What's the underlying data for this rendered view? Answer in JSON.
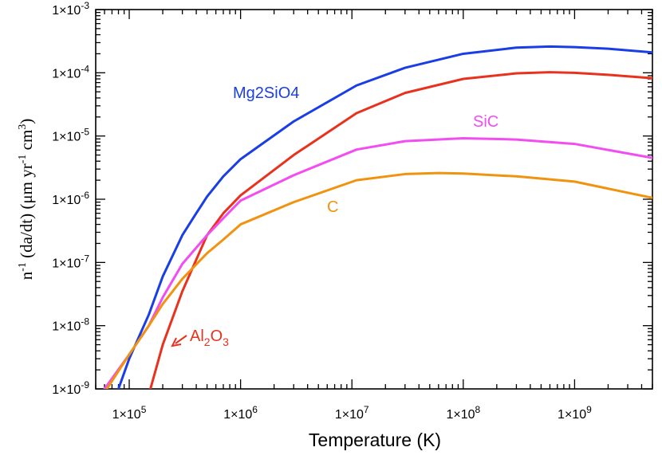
{
  "chart_data": {
    "type": "line",
    "xlabel": "Temperature (K)",
    "ylabel": {
      "prefix": "n",
      "prefix_sup": "-1",
      "part1": " (da/dt) (μm yr",
      "sup1": "-1",
      "part2": " cm",
      "sup2": "3",
      "part3": ")"
    },
    "xscale": "log",
    "yscale": "log",
    "xlim": [
      50000,
      5000000000
    ],
    "ylim": [
      1e-09,
      0.001
    ],
    "grid": false,
    "x_ticks": [
      {
        "base": "1×10",
        "exp": "5"
      },
      {
        "base": "1×10",
        "exp": "6"
      },
      {
        "base": "1×10",
        "exp": "7"
      },
      {
        "base": "1×10",
        "exp": "8"
      },
      {
        "base": "1×10",
        "exp": "9"
      }
    ],
    "y_ticks": [
      {
        "base": "1×10",
        "exp": "-9"
      },
      {
        "base": "1×10",
        "exp": "-8"
      },
      {
        "base": "1×10",
        "exp": "-7"
      },
      {
        "base": "1×10",
        "exp": "-6"
      },
      {
        "base": "1×10",
        "exp": "-5"
      },
      {
        "base": "1×10",
        "exp": "-4"
      },
      {
        "base": "1×10",
        "exp": "-3"
      }
    ],
    "series": [
      {
        "name": "Mg2SiO4",
        "color": "#1a3ee6",
        "label": {
          "text": "Mg2SiO4"
        },
        "points": [
          [
            80000,
            1e-09
          ],
          [
            100000,
            3e-09
          ],
          [
            150000,
            1.5e-08
          ],
          [
            200000,
            6e-08
          ],
          [
            300000,
            2.7e-07
          ],
          [
            400000,
            6e-07
          ],
          [
            500000,
            1.1e-06
          ],
          [
            700000,
            2.3e-06
          ],
          [
            1000000,
            4.3e-06
          ],
          [
            3000000,
            1.7e-05
          ],
          [
            11000000,
            6.3e-05
          ],
          [
            30000000,
            0.00012
          ],
          [
            100000000,
            0.0002
          ],
          [
            300000000,
            0.00025
          ],
          [
            600000000,
            0.00026
          ],
          [
            1000000000,
            0.000255
          ],
          [
            2000000000,
            0.00024
          ],
          [
            5000000000,
            0.00021
          ]
        ]
      },
      {
        "name": "Al2O3",
        "color": "#e8321e",
        "label": {
          "base": "Al",
          "sub1": "2",
          "mid": "O",
          "sub2": "3"
        },
        "points": [
          [
            155000,
            1e-09
          ],
          [
            200000,
            5e-09
          ],
          [
            300000,
            3.5e-08
          ],
          [
            500000,
            2.7e-07
          ],
          [
            700000,
            6e-07
          ],
          [
            1000000,
            1.15e-06
          ],
          [
            3000000,
            5e-06
          ],
          [
            11000000,
            2.3e-05
          ],
          [
            30000000,
            4.8e-05
          ],
          [
            100000000,
            8e-05
          ],
          [
            300000000,
            9.8e-05
          ],
          [
            600000000,
            0.000102
          ],
          [
            1000000000,
            0.0001
          ],
          [
            2000000000,
            9.3e-05
          ],
          [
            5000000000,
            8.2e-05
          ]
        ]
      },
      {
        "name": "SiC",
        "color": "#f24df0",
        "label": {
          "text": "SiC"
        },
        "points": [
          [
            60000,
            1e-09
          ],
          [
            100000,
            3.5e-09
          ],
          [
            150000,
            1e-08
          ],
          [
            200000,
            2.8e-08
          ],
          [
            300000,
            9.5e-08
          ],
          [
            500000,
            2.7e-07
          ],
          [
            700000,
            5e-07
          ],
          [
            1000000,
            9.5e-07
          ],
          [
            3000000,
            2.4e-06
          ],
          [
            11000000,
            6.1e-06
          ],
          [
            30000000,
            8.3e-06
          ],
          [
            100000000,
            9.2e-06
          ],
          [
            300000000,
            8.8e-06
          ],
          [
            1000000000,
            7.5e-06
          ],
          [
            5000000000,
            4.5e-06
          ]
        ]
      },
      {
        "name": "C",
        "color": "#f0930e",
        "label": {
          "text": "C"
        },
        "points": [
          [
            63000,
            1e-09
          ],
          [
            100000,
            3.5e-09
          ],
          [
            150000,
            1e-08
          ],
          [
            200000,
            2.2e-08
          ],
          [
            300000,
            5.5e-08
          ],
          [
            500000,
            1.4e-07
          ],
          [
            700000,
            2.3e-07
          ],
          [
            1000000,
            4e-07
          ],
          [
            3000000,
            9e-07
          ],
          [
            11000000,
            2e-06
          ],
          [
            30000000,
            2.5e-06
          ],
          [
            60000000,
            2.6e-06
          ],
          [
            100000000,
            2.55e-06
          ],
          [
            300000000,
            2.3e-06
          ],
          [
            1000000000,
            1.9e-06
          ],
          [
            5000000000,
            1.05e-06
          ]
        ]
      }
    ]
  }
}
